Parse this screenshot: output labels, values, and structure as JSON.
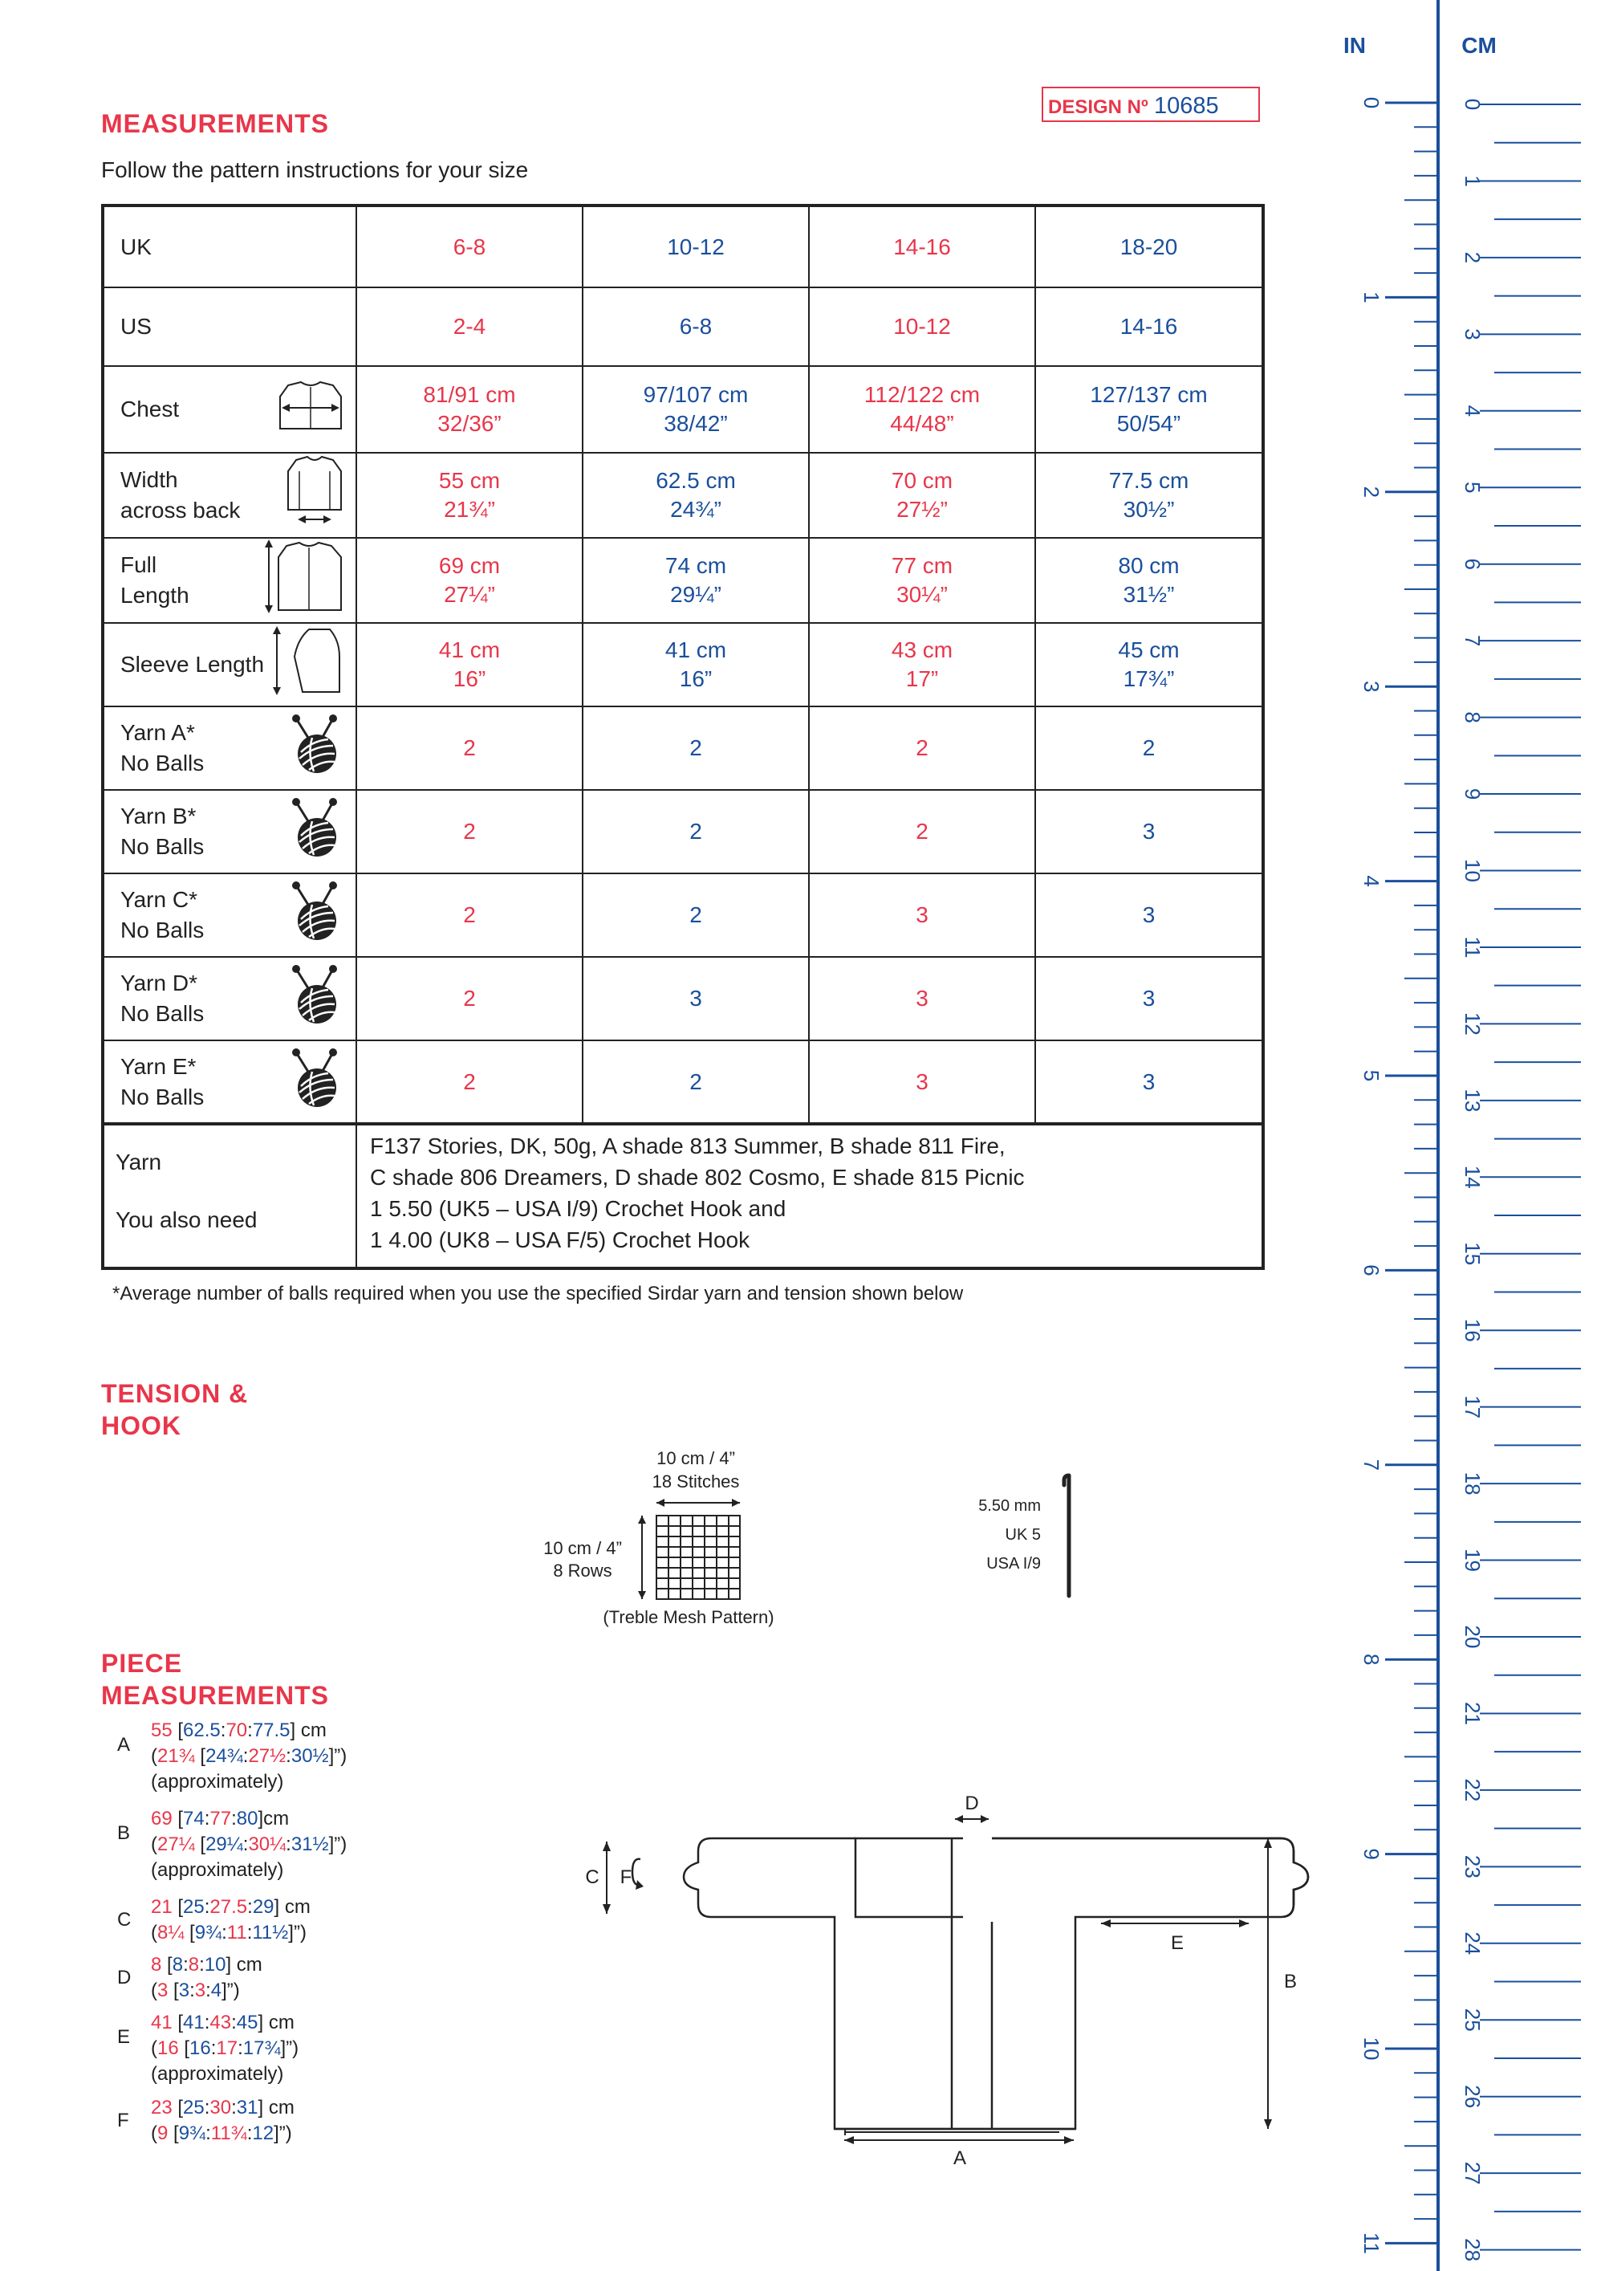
{
  "design_label": "DESIGN Nº",
  "design_number": "10685",
  "measurements_title": "MEASUREMENTS",
  "follow_text": "Follow the pattern instructions for your size",
  "table": {
    "uk_label": "UK",
    "us_label": "US",
    "uk_sizes": [
      "6-8",
      "10-12",
      "14-16",
      "18-20"
    ],
    "us_sizes": [
      "2-4",
      "6-8",
      "10-12",
      "14-16"
    ],
    "rows": [
      {
        "label1": "Chest",
        "label2": "",
        "values": [
          [
            "81/91 cm",
            "32/36”"
          ],
          [
            "97/107 cm",
            "38/42”"
          ],
          [
            "112/122 cm",
            "44/48”"
          ],
          [
            "127/137 cm",
            "50/54”"
          ]
        ]
      },
      {
        "label1": "Width",
        "label2": "across back",
        "values": [
          [
            "55 cm",
            "21¾”"
          ],
          [
            "62.5 cm",
            "24¾”"
          ],
          [
            "70 cm",
            "27½”"
          ],
          [
            "77.5 cm",
            "30½”"
          ]
        ]
      },
      {
        "label1": "Full",
        "label2": "Length",
        "values": [
          [
            "69 cm",
            "27¼”"
          ],
          [
            "74 cm",
            "29¼”"
          ],
          [
            "77 cm",
            "30¼”"
          ],
          [
            "80 cm",
            "31½”"
          ]
        ]
      },
      {
        "label1": "Sleeve Length",
        "label2": "",
        "values": [
          [
            "41 cm",
            "16”"
          ],
          [
            "41 cm",
            "16”"
          ],
          [
            "43 cm",
            "17”"
          ],
          [
            "45 cm",
            "17¾”"
          ]
        ]
      }
    ],
    "yarn_rows": [
      {
        "label1": "Yarn A*",
        "label2": "No Balls",
        "values": [
          "2",
          "2",
          "2",
          "2"
        ]
      },
      {
        "label1": "Yarn B*",
        "label2": "No Balls",
        "values": [
          "2",
          "2",
          "2",
          "3"
        ]
      },
      {
        "label1": "Yarn C*",
        "label2": "No Balls",
        "values": [
          "2",
          "2",
          "3",
          "3"
        ]
      },
      {
        "label1": "Yarn D*",
        "label2": "No Balls",
        "values": [
          "2",
          "3",
          "3",
          "3"
        ]
      },
      {
        "label1": "Yarn E*",
        "label2": "No Balls",
        "values": [
          "2",
          "2",
          "3",
          "3"
        ]
      }
    ],
    "yarn_label": "Yarn",
    "yarn_line1": "F137 Stories, DK, 50g, A shade 813 Summer, B shade 811 Fire,",
    "yarn_line2": "C shade 806 Dreamers, D shade 802 Cosmo, E shade 815 Picnic",
    "also_label": "You also need",
    "also_line1": "1 5.50 (UK5 – USA I/9) Crochet Hook and",
    "also_line2": "1 4.00 (UK8 – USA F/5) Crochet Hook"
  },
  "footnote": "*Average number of balls required when you use the specified Sirdar yarn and tension shown below",
  "tension": {
    "title1": "TENSION &",
    "title2": "HOOK",
    "width_label": "10 cm / 4”",
    "stitches": "18 Stitches",
    "height_label": "10 cm / 4”",
    "rows": "8 Rows",
    "pattern": "(Treble Mesh Pattern)",
    "hook_mm": "5.50 mm",
    "hook_uk": "UK 5",
    "hook_usa": "USA I/9"
  },
  "piece": {
    "title1": "PIECE",
    "title2": "MEASUREMENTS",
    "items": [
      {
        "letter": "A",
        "lines": [
          [
            [
              "r",
              "55"
            ],
            [
              "k",
              " ["
            ],
            [
              "b",
              "62.5"
            ],
            [
              "k",
              ":"
            ],
            [
              "r",
              "70"
            ],
            [
              "k",
              ":"
            ],
            [
              "b",
              "77.5"
            ],
            [
              "k",
              "] cm"
            ]
          ],
          [
            [
              "k",
              "("
            ],
            [
              "r",
              "21¾"
            ],
            [
              "k",
              " ["
            ],
            [
              "b",
              "24¾"
            ],
            [
              "k",
              ":"
            ],
            [
              "r",
              "27½"
            ],
            [
              "k",
              ":"
            ],
            [
              "b",
              "30½"
            ],
            [
              "k",
              "]”)"
            ]
          ],
          [
            [
              "k",
              "(approximately)"
            ]
          ]
        ]
      },
      {
        "letter": "B",
        "lines": [
          [
            [
              "r",
              "69"
            ],
            [
              "k",
              " ["
            ],
            [
              "b",
              "74"
            ],
            [
              "k",
              ":"
            ],
            [
              "r",
              "77"
            ],
            [
              "k",
              ":"
            ],
            [
              "b",
              "80"
            ],
            [
              "k",
              "]cm"
            ]
          ],
          [
            [
              "k",
              "("
            ],
            [
              "r",
              "27¼"
            ],
            [
              "k",
              " ["
            ],
            [
              "b",
              "29¼"
            ],
            [
              "k",
              ":"
            ],
            [
              "r",
              "30¼"
            ],
            [
              "k",
              ":"
            ],
            [
              "b",
              "31½"
            ],
            [
              "k",
              "]”)"
            ]
          ],
          [
            [
              "k",
              "(approximately)"
            ]
          ]
        ]
      },
      {
        "letter": "C",
        "lines": [
          [
            [
              "r",
              "21"
            ],
            [
              "k",
              " ["
            ],
            [
              "b",
              "25"
            ],
            [
              "k",
              ":"
            ],
            [
              "r",
              "27.5"
            ],
            [
              "k",
              ":"
            ],
            [
              "b",
              "29"
            ],
            [
              "k",
              "] cm"
            ]
          ],
          [
            [
              "k",
              "("
            ],
            [
              "r",
              "8¼"
            ],
            [
              "k",
              " ["
            ],
            [
              "b",
              "9¾"
            ],
            [
              "k",
              ":"
            ],
            [
              "r",
              "11"
            ],
            [
              "k",
              ":"
            ],
            [
              "b",
              "11½"
            ],
            [
              "k",
              "]”)"
            ]
          ]
        ]
      },
      {
        "letter": "D",
        "lines": [
          [
            [
              "r",
              "8"
            ],
            [
              "k",
              " ["
            ],
            [
              "b",
              "8"
            ],
            [
              "k",
              ":"
            ],
            [
              "r",
              "8"
            ],
            [
              "k",
              ":"
            ],
            [
              "b",
              "10"
            ],
            [
              "k",
              "] cm"
            ]
          ],
          [
            [
              "k",
              "("
            ],
            [
              "r",
              "3"
            ],
            [
              "k",
              " ["
            ],
            [
              "b",
              "3"
            ],
            [
              "k",
              ":"
            ],
            [
              "r",
              "3"
            ],
            [
              "k",
              ":"
            ],
            [
              "b",
              "4"
            ],
            [
              "k",
              "]”)"
            ]
          ]
        ]
      },
      {
        "letter": "E",
        "lines": [
          [
            [
              "r",
              "41"
            ],
            [
              "k",
              " ["
            ],
            [
              "b",
              "41"
            ],
            [
              "k",
              ":"
            ],
            [
              "r",
              "43"
            ],
            [
              "k",
              ":"
            ],
            [
              "b",
              "45"
            ],
            [
              "k",
              "] cm"
            ]
          ],
          [
            [
              "k",
              "("
            ],
            [
              "r",
              "16"
            ],
            [
              "k",
              " ["
            ],
            [
              "b",
              "16"
            ],
            [
              "k",
              ":"
            ],
            [
              "r",
              "17"
            ],
            [
              "k",
              ":"
            ],
            [
              "b",
              "17¾"
            ],
            [
              "k",
              "]”)"
            ]
          ],
          [
            [
              "k",
              "(approximately)"
            ]
          ]
        ]
      },
      {
        "letter": "F",
        "lines": [
          [
            [
              "r",
              "23"
            ],
            [
              "k",
              " ["
            ],
            [
              "b",
              "25"
            ],
            [
              "k",
              ":"
            ],
            [
              "r",
              "30"
            ],
            [
              "k",
              ":"
            ],
            [
              "b",
              "31"
            ],
            [
              "k",
              "] cm"
            ]
          ],
          [
            [
              "k",
              "("
            ],
            [
              "r",
              "9"
            ],
            [
              "k",
              " ["
            ],
            [
              "b",
              "9¾"
            ],
            [
              "k",
              ":"
            ],
            [
              "r",
              "11¾"
            ],
            [
              "k",
              ":"
            ],
            [
              "b",
              "12"
            ],
            [
              "k",
              "]”)"
            ]
          ]
        ]
      }
    ]
  },
  "diagram_labels": {
    "a": "A",
    "b": "B",
    "c": "C",
    "d": "D",
    "e": "E",
    "f": "F"
  },
  "ruler": {
    "in_label": "IN",
    "cm_label": "CM",
    "in_numbers": [
      "0",
      "1",
      "2",
      "3",
      "4",
      "5",
      "6",
      "7",
      "8",
      "9",
      "10",
      "11"
    ],
    "cm_numbers": [
      "0",
      "1",
      "2",
      "3",
      "4",
      "5",
      "6",
      "7",
      "8",
      "9",
      "10",
      "11",
      "12",
      "13",
      "14",
      "15",
      "16",
      "17",
      "18",
      "19",
      "20",
      "21",
      "22",
      "23",
      "24",
      "25",
      "26",
      "27",
      "28"
    ],
    "color": "#1a4f9c"
  },
  "colors": {
    "red": "#e8364a",
    "blue": "#1a4f9c"
  }
}
